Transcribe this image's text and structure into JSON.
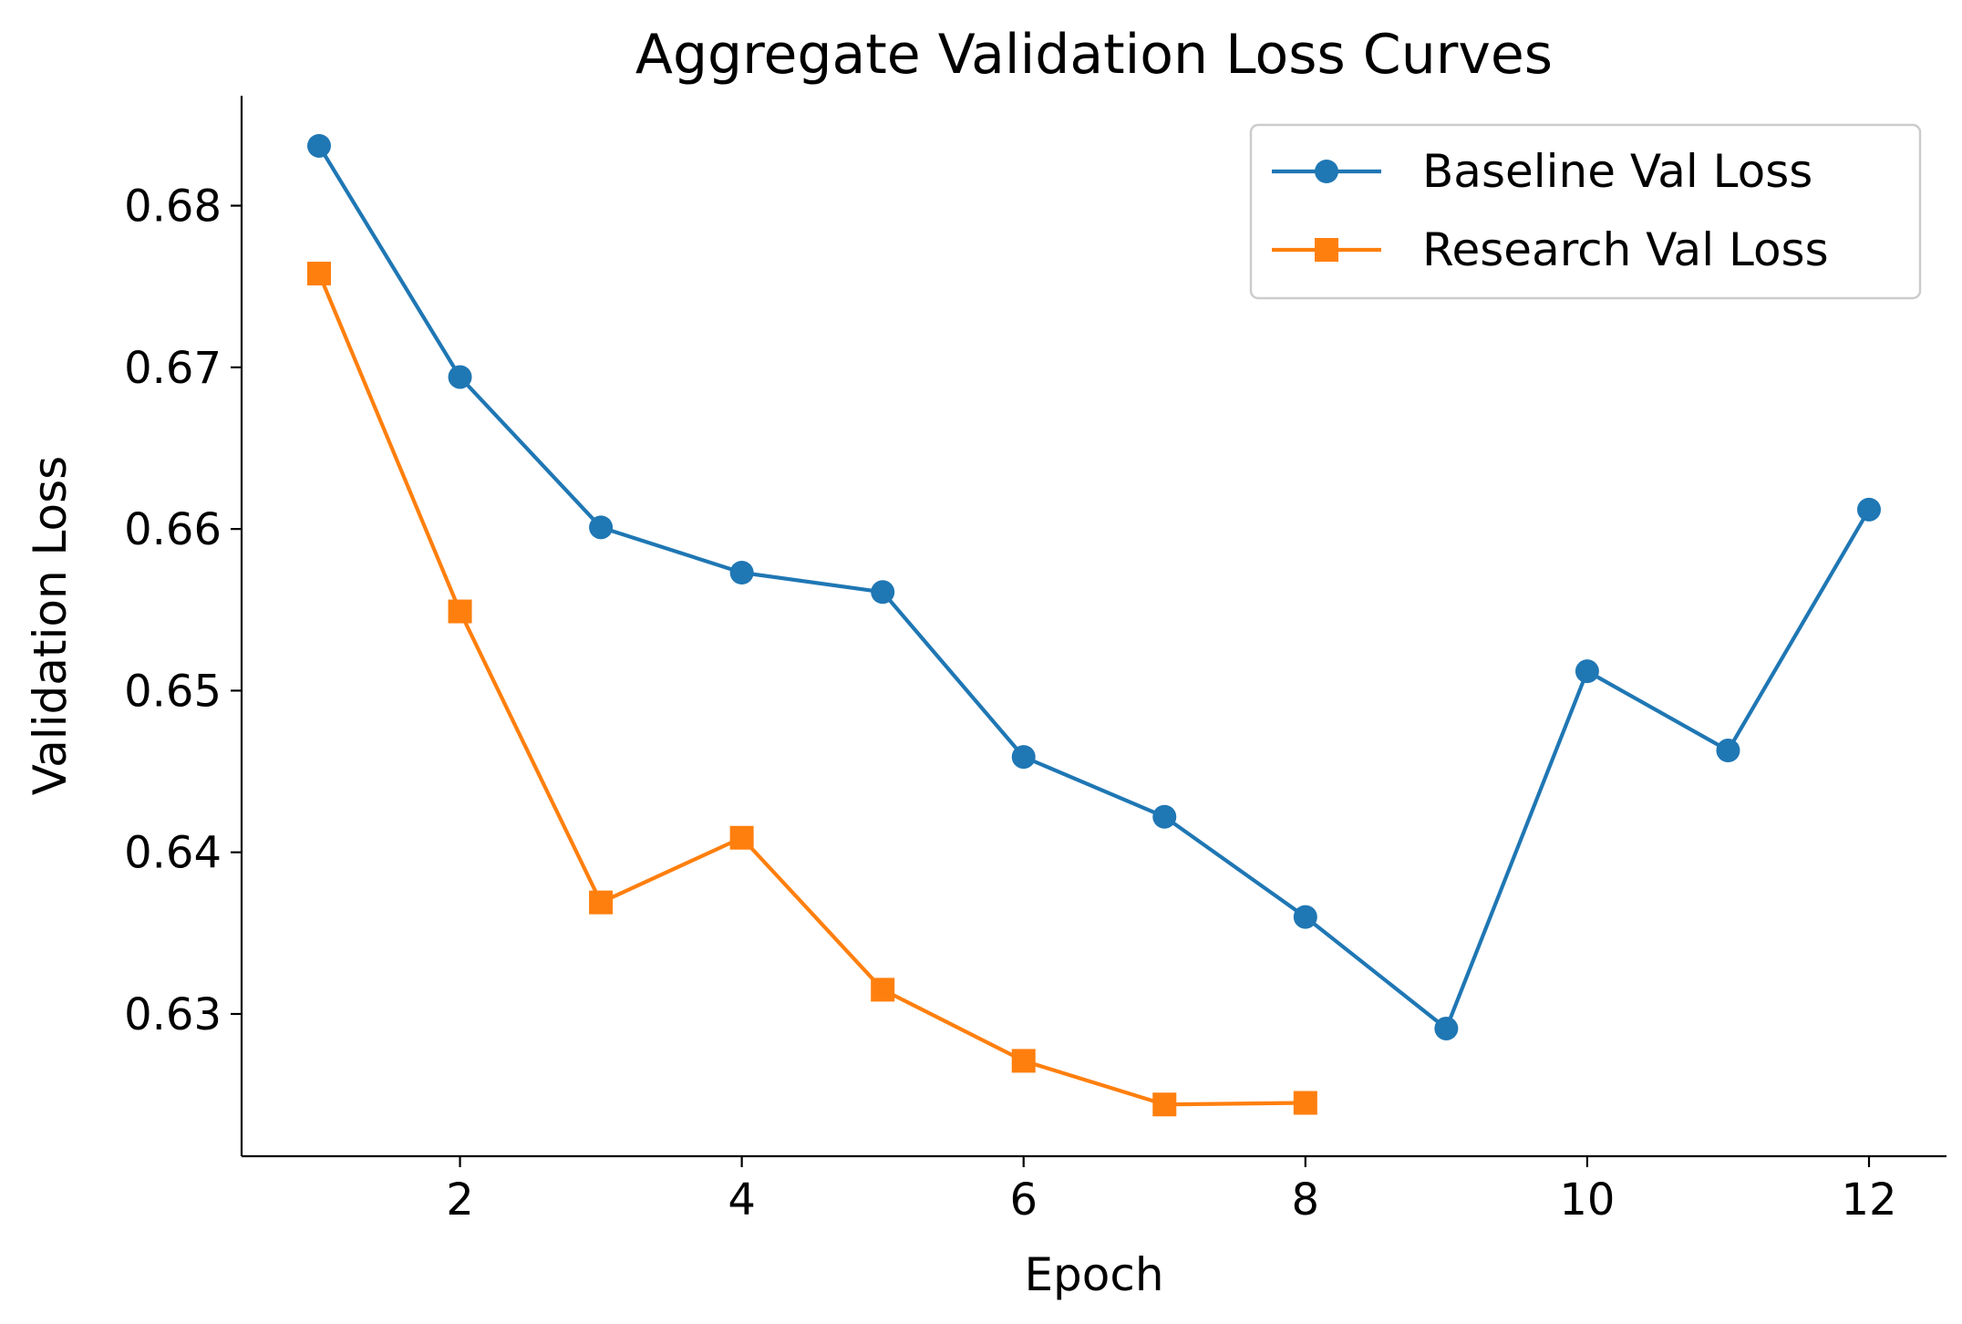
{
  "chart_data": {
    "type": "line",
    "title": "Aggregate Validation Loss Curves",
    "xlabel": "Epoch",
    "ylabel": "Validation Loss",
    "xlim": [
      0.45,
      12.55
    ],
    "ylim": [
      0.6212,
      0.6868
    ],
    "xticks": [
      2,
      4,
      6,
      8,
      10,
      12
    ],
    "xtick_labels": [
      "2",
      "4",
      "6",
      "8",
      "10",
      "12"
    ],
    "yticks": [
      0.63,
      0.64,
      0.65,
      0.66,
      0.67,
      0.68
    ],
    "ytick_labels": [
      "0.63",
      "0.64",
      "0.65",
      "0.66",
      "0.67",
      "0.68"
    ],
    "grid": false,
    "legend_position": "top-right",
    "series": [
      {
        "name": "Baseline Val Loss",
        "color": "#1f77b4",
        "marker": "circle",
        "x": [
          1,
          2,
          3,
          4,
          5,
          6,
          7,
          8,
          9,
          10,
          11,
          12
        ],
        "values": [
          0.6837,
          0.6694,
          0.6601,
          0.6573,
          0.6561,
          0.6459,
          0.6422,
          0.636,
          0.6291,
          0.6512,
          0.6463,
          0.6612
        ]
      },
      {
        "name": "Research Val Loss",
        "color": "#ff7f0e",
        "marker": "square",
        "x": [
          1,
          2,
          3,
          4,
          5,
          6,
          7,
          8
        ],
        "values": [
          0.6758,
          0.6549,
          0.6369,
          0.6409,
          0.6315,
          0.6271,
          0.6244,
          0.6245
        ]
      }
    ]
  }
}
